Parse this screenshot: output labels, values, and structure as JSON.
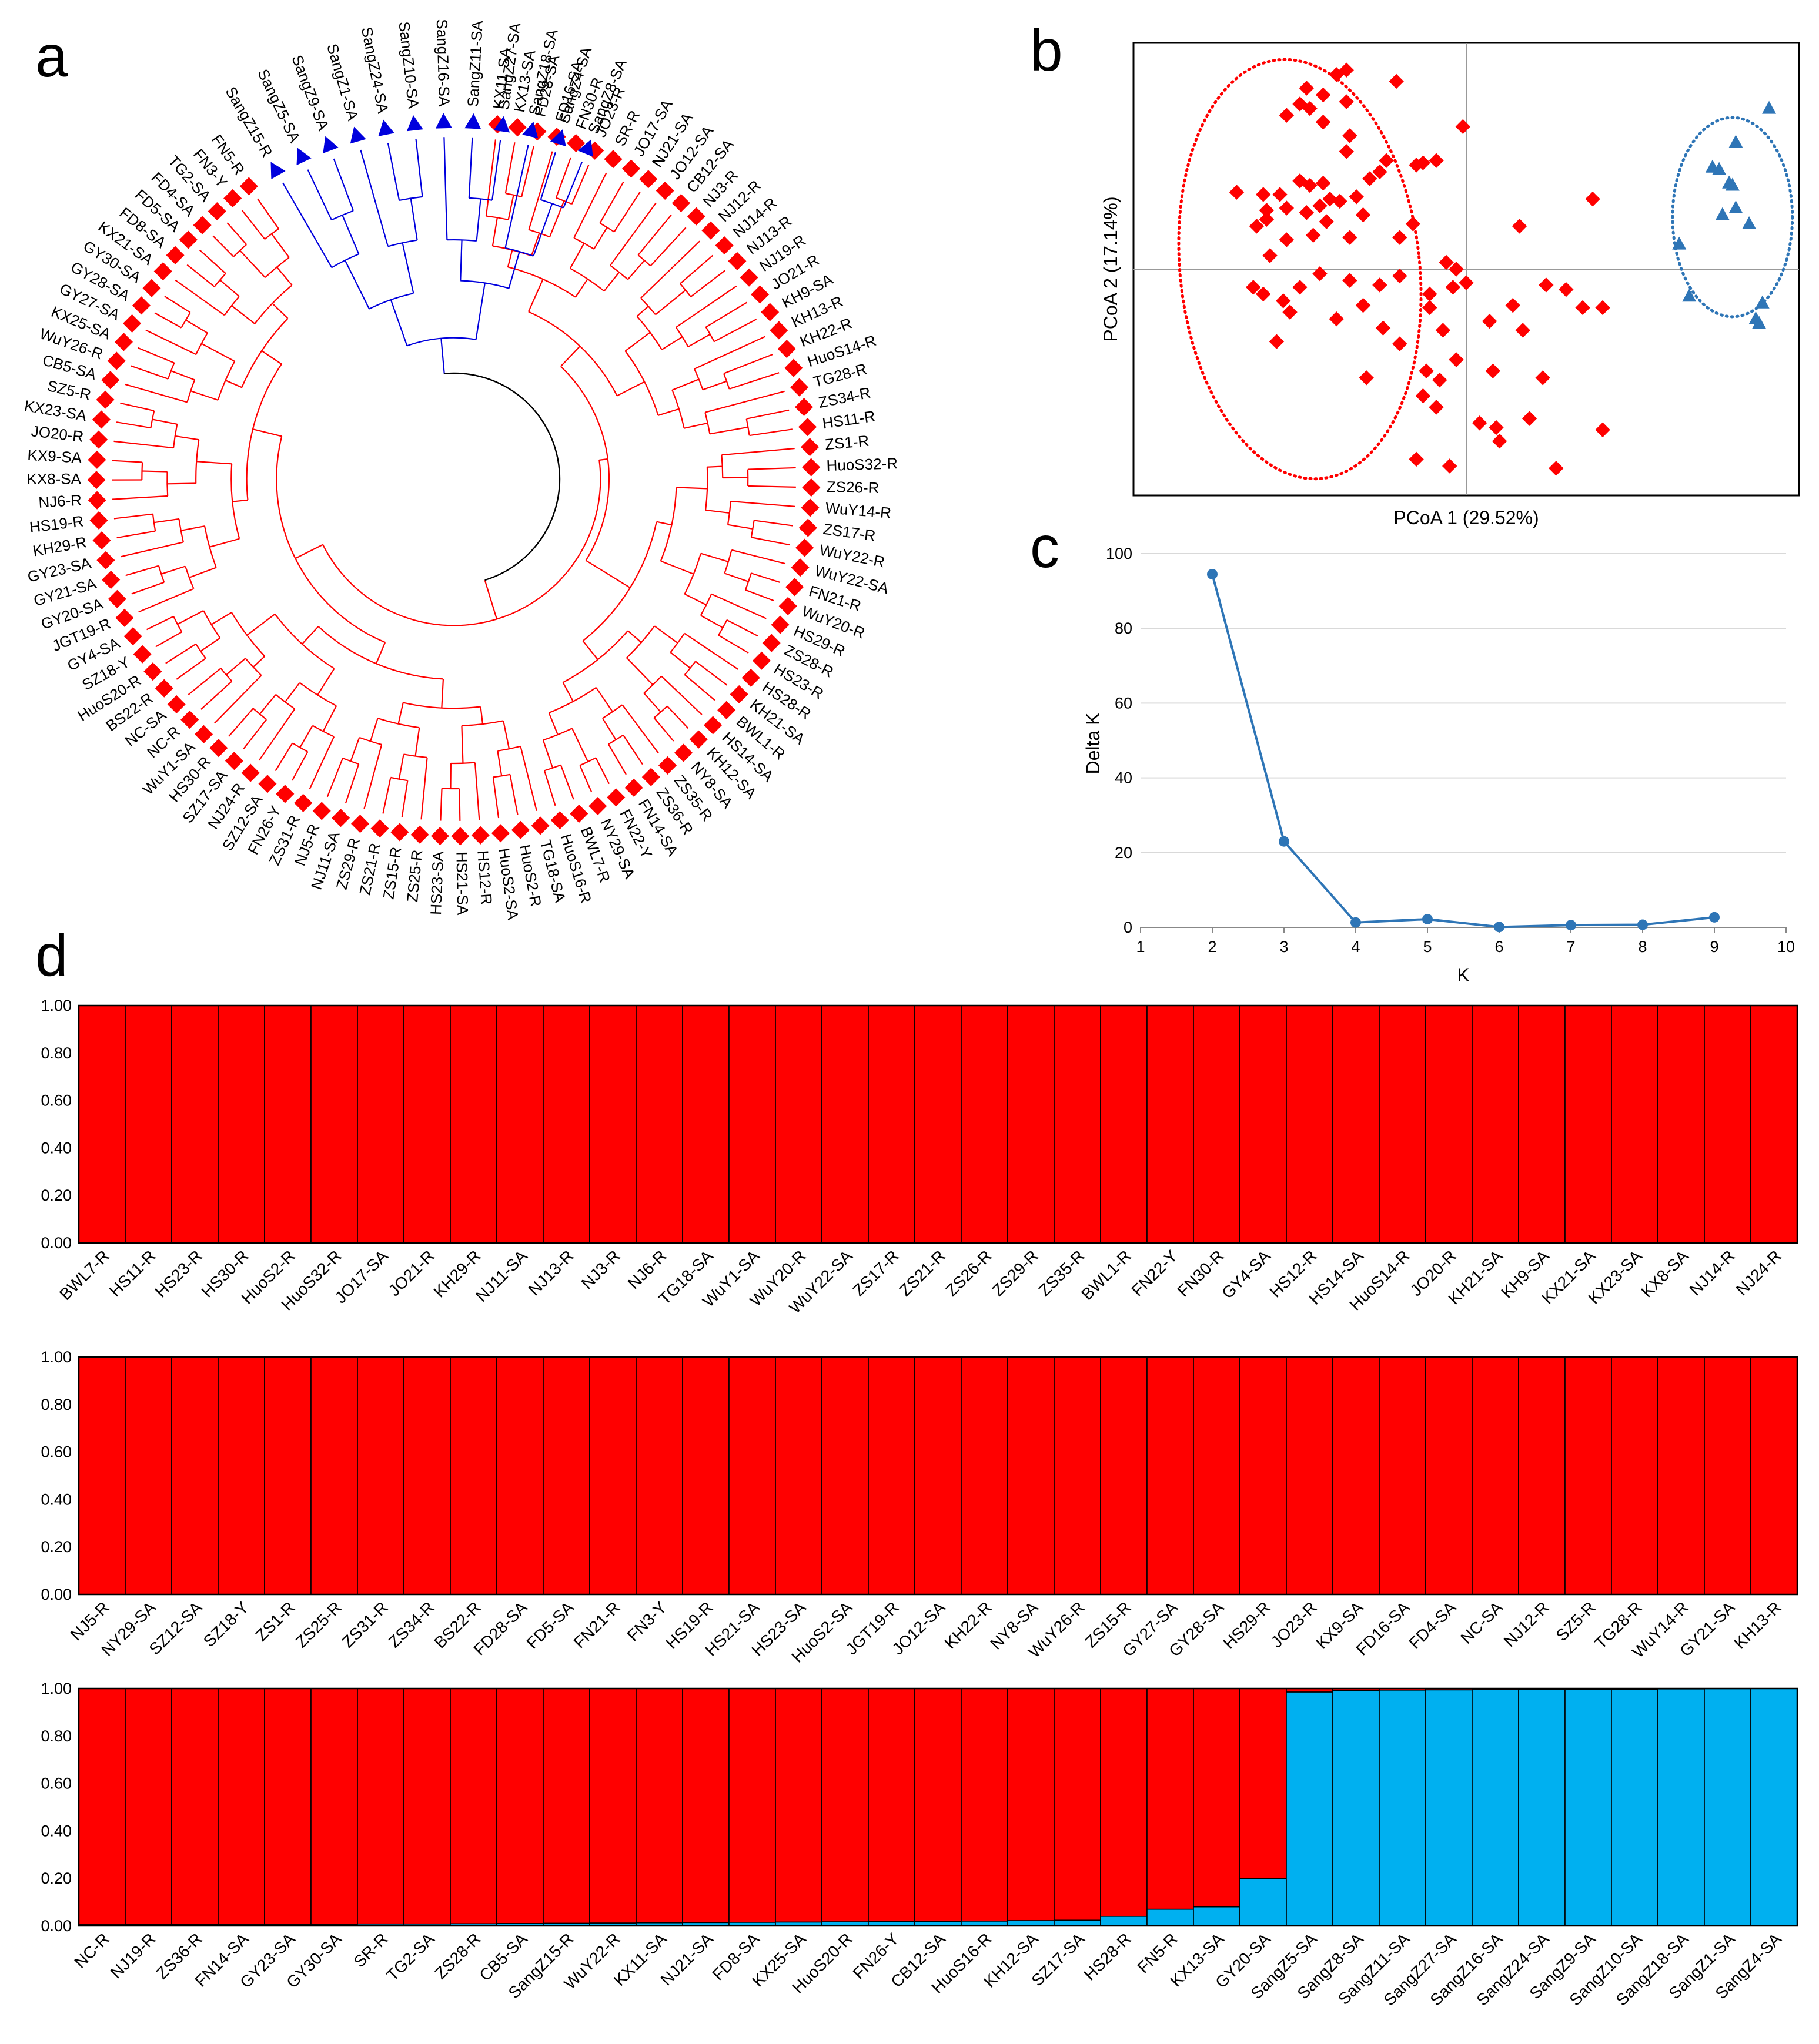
{
  "panels": {
    "a": "a",
    "b": "b",
    "c": "c",
    "d": "d"
  },
  "colors": {
    "red": "#ff0000",
    "blue": "#0000dd",
    "pca_blue": "#2e75b6",
    "cyan": "#00b0f0",
    "deltak": "#2e75b6",
    "grid": "#d9d9d9"
  },
  "chart_data": [
    {
      "id": "a",
      "type": "dendrogram",
      "title": "",
      "clusters": [
        {
          "name": "cluster-red",
          "marker": "diamond",
          "color": "#ff0000",
          "leaves": [
            "KX11-SA",
            "KX13-SA",
            "FD28-SA",
            "FD16-SA",
            "FN30-R",
            "JO23-R",
            "SR-R",
            "JO17-SA",
            "NJ21-SA",
            "JO12-SA",
            "CB12-SA",
            "NJ3-R",
            "NJ12-R",
            "NJ14-R",
            "NJ13-R",
            "NJ19-R",
            "JO21-R",
            "KH9-SA",
            "KH13-R",
            "KH22-R",
            "HuoS14-R",
            "TG28-R",
            "ZS34-R",
            "HS11-R",
            "ZS1-R",
            "HuoS32-R",
            "ZS26-R",
            "WuY14-R",
            "ZS17-R",
            "WuY22-R",
            "WuY22-SA",
            "FN21-R",
            "WuY20-R",
            "HS29-R",
            "ZS28-R",
            "HS23-R",
            "HS28-R",
            "KH21-SA",
            "BWL1-R",
            "HS14-SA",
            "KH12-SA",
            "NY8-SA",
            "ZS35-R",
            "ZS36-R",
            "FN14-SA",
            "FN22-Y",
            "NY29-SA",
            "BWL7-R",
            "HuoS16-R",
            "TG18-SA",
            "HuoS2-R",
            "HuoS2-SA",
            "HS12-R",
            "HS21-SA",
            "HS23-SA",
            "ZS25-R",
            "ZS15-R",
            "ZS21-R",
            "ZS29-R",
            "NJ11-SA",
            "NJ5-R",
            "ZS31-R",
            "FN26-Y",
            "SZ12-SA",
            "NJ24-R",
            "SZ17-SA",
            "HS30-R",
            "WuY1-SA",
            "NC-R",
            "NC-SA",
            "BS22-R",
            "HuoS20-R",
            "SZ18-Y",
            "GY4-SA",
            "JGT19-R",
            "GY20-SA",
            "GY21-SA",
            "GY23-SA",
            "KH29-R",
            "HS19-R",
            "NJ6-R",
            "KX8-SA",
            "KX9-SA",
            "JO20-R",
            "KX23-SA",
            "SZ5-R",
            "CB5-SA",
            "WuY26-R",
            "KX25-SA",
            "GY27-SA",
            "GY28-SA",
            "GY30-SA",
            "KX21-SA",
            "FD8-SA",
            "FD5-SA",
            "FD4-SA",
            "TG2-SA",
            "FN3-Y",
            "FN5-R"
          ]
        },
        {
          "name": "cluster-blue",
          "marker": "triangle",
          "color": "#0000dd",
          "leaves": [
            "SangZ15-R",
            "SangZ5-SA",
            "SangZ9-SA",
            "SangZ1-SA",
            "SangZ24-SA",
            "SangZ10-SA",
            "SangZ16-SA",
            "SangZ11-SA",
            "SangZ27-SA",
            "SangZ18-SA",
            "SangZ4-SA",
            "SangZ8-SA"
          ]
        }
      ]
    },
    {
      "id": "b",
      "type": "scatter",
      "title": "",
      "xlabel": "PCoA 1 (29.52%)",
      "ylabel": "PCoA 2 (17.14%)",
      "xlim": [
        -1,
        1
      ],
      "ylim": [
        -1,
        1
      ],
      "series": [
        {
          "name": "red-group",
          "marker": "diamond",
          "color": "#ff0000",
          "ellipse": {
            "cx": -0.5,
            "cy": 0.0,
            "rx": 0.36,
            "ry": 0.93
          },
          "points": [
            [
              -0.36,
              0.88
            ],
            [
              -0.39,
              0.86
            ],
            [
              -0.48,
              0.8
            ],
            [
              -0.21,
              0.83
            ],
            [
              -0.43,
              0.77
            ],
            [
              -0.5,
              0.73
            ],
            [
              -0.54,
              0.68
            ],
            [
              -0.47,
              0.71
            ],
            [
              -0.36,
              0.74
            ],
            [
              -0.43,
              0.65
            ],
            [
              -0.35,
              0.59
            ],
            [
              -0.36,
              0.52
            ],
            [
              -0.01,
              0.63
            ],
            [
              -0.09,
              0.48
            ],
            [
              -0.15,
              0.46
            ],
            [
              -0.13,
              0.47
            ],
            [
              -0.24,
              0.48
            ],
            [
              -0.26,
              0.43
            ],
            [
              -0.29,
              0.4
            ],
            [
              -0.43,
              0.38
            ],
            [
              -0.47,
              0.37
            ],
            [
              -0.56,
              0.33
            ],
            [
              -0.5,
              0.39
            ],
            [
              -0.61,
              0.33
            ],
            [
              -0.69,
              0.34
            ],
            [
              -0.6,
              0.26
            ],
            [
              -0.54,
              0.27
            ],
            [
              -0.6,
              0.22
            ],
            [
              -0.63,
              0.19
            ],
            [
              -0.41,
              0.31
            ],
            [
              -0.44,
              0.28
            ],
            [
              -0.48,
              0.25
            ],
            [
              -0.42,
              0.21
            ],
            [
              -0.38,
              0.3
            ],
            [
              -0.31,
              0.24
            ],
            [
              -0.33,
              0.32
            ],
            [
              -0.35,
              0.14
            ],
            [
              -0.46,
              0.15
            ],
            [
              -0.54,
              0.13
            ],
            [
              -0.59,
              0.06
            ],
            [
              -0.2,
              0.14
            ],
            [
              -0.16,
              0.2
            ],
            [
              0.16,
              0.19
            ],
            [
              0.38,
              0.31
            ],
            [
              -0.06,
              0.03
            ],
            [
              0.0,
              -0.06
            ],
            [
              -0.03,
              0.0
            ],
            [
              -0.04,
              -0.08
            ],
            [
              -0.11,
              -0.11
            ],
            [
              -0.11,
              -0.17
            ],
            [
              -0.2,
              -0.03
            ],
            [
              -0.26,
              -0.07
            ],
            [
              -0.35,
              -0.05
            ],
            [
              -0.44,
              -0.02
            ],
            [
              -0.5,
              -0.08
            ],
            [
              -0.55,
              -0.14
            ],
            [
              -0.61,
              -0.11
            ],
            [
              -0.64,
              -0.08
            ],
            [
              -0.57,
              -0.32
            ],
            [
              -0.53,
              -0.19
            ],
            [
              -0.39,
              -0.22
            ],
            [
              -0.31,
              -0.16
            ],
            [
              -0.25,
              -0.26
            ],
            [
              -0.2,
              -0.33
            ],
            [
              -0.12,
              -0.45
            ],
            [
              -0.03,
              -0.4
            ],
            [
              0.08,
              -0.45
            ],
            [
              0.17,
              -0.27
            ],
            [
              0.14,
              -0.16
            ],
            [
              0.3,
              -0.09
            ],
            [
              0.35,
              -0.17
            ],
            [
              0.41,
              -0.17
            ],
            [
              0.24,
              -0.07
            ],
            [
              -0.08,
              -0.49
            ],
            [
              -0.09,
              -0.61
            ],
            [
              0.04,
              -0.68
            ],
            [
              0.1,
              -0.76
            ],
            [
              0.09,
              -0.7
            ],
            [
              0.19,
              -0.66
            ],
            [
              0.41,
              -0.71
            ],
            [
              0.27,
              -0.88
            ],
            [
              -0.05,
              -0.87
            ],
            [
              -0.15,
              -0.84
            ],
            [
              -0.13,
              -0.56
            ],
            [
              -0.3,
              -0.48
            ],
            [
              -0.07,
              -0.27
            ],
            [
              0.23,
              -0.48
            ],
            [
              0.07,
              -0.23
            ]
          ]
        },
        {
          "name": "blue-group",
          "marker": "triangle",
          "color": "#2e75b6",
          "ellipse": {
            "cx": 0.8,
            "cy": 0.23,
            "rx": 0.18,
            "ry": 0.44
          },
          "points": [
            [
              0.91,
              0.71
            ],
            [
              0.81,
              0.56
            ],
            [
              0.74,
              0.45
            ],
            [
              0.76,
              0.44
            ],
            [
              0.79,
              0.38
            ],
            [
              0.8,
              0.37
            ],
            [
              0.81,
              0.27
            ],
            [
              0.77,
              0.24
            ],
            [
              0.85,
              0.2
            ],
            [
              0.64,
              0.11
            ],
            [
              0.67,
              -0.12
            ],
            [
              0.89,
              -0.15
            ],
            [
              0.87,
              -0.22
            ],
            [
              0.88,
              -0.24
            ]
          ]
        }
      ]
    },
    {
      "id": "c",
      "type": "line",
      "title": "",
      "xlabel": "K",
      "ylabel": "Delta K",
      "xlim": [
        1,
        10
      ],
      "ylim": [
        0,
        100
      ],
      "xticks": [
        "1",
        "2",
        "3",
        "4",
        "5",
        "6",
        "7",
        "8",
        "9",
        "10"
      ],
      "yticks": [
        "0",
        "20",
        "40",
        "60",
        "80",
        "100"
      ],
      "x": [
        2,
        3,
        4,
        5,
        6,
        7,
        8,
        9
      ],
      "values": [
        94.5,
        23.0,
        1.3,
        2.2,
        0.1,
        0.6,
        0.7,
        2.7
      ]
    },
    {
      "id": "d",
      "type": "bar",
      "stacked": true,
      "title": "",
      "ylim": [
        0,
        1
      ],
      "yticks": [
        "0.00",
        "0.20",
        "0.40",
        "0.60",
        "0.80",
        "1.00"
      ],
      "series": [
        {
          "name": "cluster-red",
          "color": "#ff0000"
        },
        {
          "name": "cluster-blue",
          "color": "#00b0f0"
        }
      ],
      "rows": [
        {
          "categories": [
            "BWL7-R",
            "HS11-R",
            "HS23-R",
            "HS30-R",
            "HuoS2-R",
            "HuoS32-R",
            "JO17-SA",
            "JO21-R",
            "KH29-R",
            "NJ11-SA",
            "NJ13-R",
            "NJ3-R",
            "NJ6-R",
            "TG18-SA",
            "WuY1-SA",
            "WuY20-R",
            "WuY22-SA",
            "ZS17-R",
            "ZS21-R",
            "ZS26-R",
            "ZS29-R",
            "ZS35-R",
            "BWL1-R",
            "FN22-Y",
            "FN30-R",
            "GY4-SA",
            "HS12-R",
            "HS14-SA",
            "HuoS14-R",
            "JO20-R",
            "KH21-SA",
            "KH9-SA",
            "KX21-SA",
            "KX23-SA",
            "KX8-SA",
            "NJ14-R",
            "NJ24-R"
          ],
          "blue": [
            0,
            0,
            0,
            0,
            0,
            0,
            0,
            0,
            0,
            0,
            0,
            0,
            0,
            0,
            0,
            0,
            0,
            0,
            0,
            0,
            0,
            0,
            0,
            0,
            0,
            0,
            0,
            0,
            0,
            0,
            0,
            0,
            0,
            0,
            0,
            0,
            0
          ]
        },
        {
          "categories": [
            "NJ5-R",
            "NY29-SA",
            "SZ12-SA",
            "SZ18-Y",
            "ZS1-R",
            "ZS25-R",
            "ZS31-R",
            "ZS34-R",
            "BS22-R",
            "FD28-SA",
            "FD5-SA",
            "FN21-R",
            "FN3-Y",
            "HS19-R",
            "HS21-SA",
            "HS23-SA",
            "HuoS2-SA",
            "JGT19-R",
            "JO12-SA",
            "KH22-R",
            "NY8-SA",
            "WuY26-R",
            "ZS15-R",
            "GY27-SA",
            "GY28-SA",
            "HS29-R",
            "JO23-R",
            "KX9-SA",
            "FD16-SA",
            "FD4-SA",
            "NC-SA",
            "NJ12-R",
            "SZ5-R",
            "TG28-R",
            "WuY14-R",
            "GY21-SA",
            "KH13-R"
          ],
          "blue": [
            0,
            0,
            0,
            0,
            0,
            0,
            0,
            0,
            0,
            0,
            0,
            0,
            0,
            0,
            0,
            0,
            0,
            0,
            0,
            0,
            0,
            0,
            0,
            0,
            0,
            0,
            0,
            0,
            0,
            0,
            0,
            0,
            0,
            0,
            0,
            0,
            0
          ]
        },
        {
          "categories": [
            "NC-R",
            "NJ19-R",
            "ZS36-R",
            "FN14-SA",
            "GY23-SA",
            "GY30-SA",
            "SR-R",
            "TG2-SA",
            "ZS28-R",
            "CB5-SA",
            "SangZ15-R",
            "WuY22-R",
            "KX11-SA",
            "NJ21-SA",
            "FD8-SA",
            "KX25-SA",
            "HuoS20-R",
            "FN26-Y",
            "CB12-SA",
            "HuoS16-R",
            "KH12-SA",
            "SZ17-SA",
            "HS28-R",
            "FN5-R",
            "KX13-SA",
            "GY20-SA",
            "SangZ5-SA",
            "SangZ8-SA",
            "SangZ11-SA",
            "SangZ27-SA",
            "SangZ16-SA",
            "SangZ24-SA",
            "SangZ9-SA",
            "SangZ10-SA",
            "SangZ18-SA",
            "SangZ1-SA",
            "SangZ4-SA"
          ],
          "blue": [
            0.005,
            0.006,
            0.006,
            0.007,
            0.007,
            0.007,
            0.008,
            0.008,
            0.009,
            0.01,
            0.011,
            0.012,
            0.013,
            0.014,
            0.015,
            0.016,
            0.017,
            0.018,
            0.019,
            0.02,
            0.022,
            0.024,
            0.04,
            0.07,
            0.08,
            0.2,
            0.985,
            0.992,
            0.993,
            0.994,
            0.995,
            0.996,
            0.996,
            0.997,
            0.998,
            0.999,
            1.0
          ]
        }
      ]
    }
  ]
}
